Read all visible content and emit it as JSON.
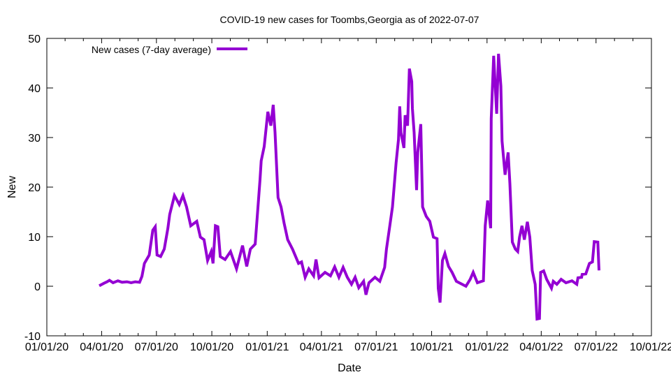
{
  "chart_data": {
    "type": "line",
    "title": "COVID-19 new cases for Toombs,Georgia as of 2022-07-07",
    "xlabel": "Date",
    "ylabel": "New",
    "x_origin": "2020-01-01",
    "x_unit": "days since 2020-01-01",
    "xlim": [
      0,
      1004
    ],
    "ylim": [
      -10,
      50
    ],
    "yticks": [
      -10,
      0,
      10,
      20,
      30,
      40,
      50
    ],
    "xticks": [
      {
        "day": 0,
        "label": "01/01/20"
      },
      {
        "day": 91,
        "label": "04/01/20"
      },
      {
        "day": 182,
        "label": "07/01/20"
      },
      {
        "day": 274,
        "label": "10/01/20"
      },
      {
        "day": 366,
        "label": "01/01/21"
      },
      {
        "day": 456,
        "label": "04/01/21"
      },
      {
        "day": 547,
        "label": "07/01/21"
      },
      {
        "day": 639,
        "label": "10/01/21"
      },
      {
        "day": 731,
        "label": "01/01/22"
      },
      {
        "day": 821,
        "label": "04/01/22"
      },
      {
        "day": 912,
        "label": "07/01/22"
      },
      {
        "day": 1004,
        "label": "10/01/22"
      }
    ],
    "grid": false,
    "legend_position": "top-left",
    "series": [
      {
        "name": "New cases (7-day average)",
        "color": "#9400d3",
        "x": [
          87,
          95,
          100,
          104,
          110,
          118,
          125,
          133,
          140,
          147,
          154,
          158,
          162,
          170,
          176,
          180,
          183,
          189,
          195,
          201,
          204,
          212,
          220,
          226,
          232,
          239,
          249,
          255,
          261,
          267,
          273,
          276,
          280,
          284,
          288,
          296,
          305,
          315,
          325,
          332,
          338,
          346,
          352,
          354,
          356,
          361,
          367,
          372,
          376,
          379,
          384,
          389,
          394,
          400,
          408,
          418,
          423,
          429,
          435,
          443,
          447,
          452,
          462,
          471,
          478,
          485,
          492,
          499,
          506,
          512,
          518,
          526,
          530,
          535,
          545,
          553,
          561,
          564,
          569,
          574,
          580,
          584,
          586,
          588,
          593,
          595,
          599,
          602,
          606,
          607,
          610,
          614,
          616,
          621,
          624,
          630,
          636,
          642,
          648,
          650,
          653,
          657,
          661,
          667,
          673,
          680,
          696,
          703,
          708,
          715,
          725,
          728,
          732,
          737,
          738,
          742,
          747,
          750,
          754,
          756,
          761,
          766,
          769,
          773,
          778,
          782,
          785,
          789,
          793,
          798,
          802,
          806,
          811,
          814,
          818,
          820,
          825,
          830,
          838,
          841,
          847,
          854,
          862,
          872,
          880,
          882,
          888,
          889,
          895,
          901,
          906,
          909,
          915,
          917
        ],
        "y": [
          0.1,
          0.6,
          0.9,
          1.2,
          0.7,
          1.1,
          0.8,
          0.9,
          0.7,
          0.9,
          0.8,
          2.0,
          4.6,
          6.3,
          11.3,
          12.0,
          6.3,
          6.0,
          7.5,
          11.7,
          14.5,
          18.3,
          16.5,
          18.3,
          16.0,
          12.2,
          13.1,
          9.9,
          9.4,
          5.2,
          7.0,
          4.6,
          12.2,
          12.0,
          6.0,
          5.4,
          7.0,
          3.5,
          8.2,
          4.0,
          7.5,
          8.5,
          18.3,
          21.5,
          25.3,
          28.2,
          35.2,
          32.4,
          36.6,
          31.0,
          17.9,
          16.0,
          12.7,
          9.4,
          7.5,
          4.6,
          4.9,
          1.8,
          3.5,
          2.1,
          5.4,
          1.7,
          2.8,
          2.1,
          3.9,
          1.8,
          3.8,
          1.8,
          0.4,
          1.8,
          -0.3,
          1.0,
          -1.7,
          0.7,
          1.8,
          1.0,
          3.8,
          7.5,
          11.7,
          16.0,
          24.9,
          29.6,
          36.3,
          31.0,
          27.9,
          34.5,
          32.4,
          43.9,
          41.3,
          35.9,
          31.0,
          19.4,
          27.0,
          32.7,
          16.0,
          14.1,
          13.1,
          9.9,
          9.6,
          -0.4,
          -3.3,
          5.2,
          6.6,
          4.0,
          2.8,
          1.0,
          0.0,
          1.4,
          2.8,
          0.7,
          1.1,
          12.2,
          17.3,
          11.7,
          33.8,
          46.5,
          34.8,
          46.9,
          40.4,
          29.3,
          22.5,
          27.0,
          20.7,
          8.9,
          7.5,
          7.0,
          9.9,
          12.2,
          9.4,
          13.0,
          9.9,
          3.2,
          0.4,
          -6.6,
          -6.5,
          2.8,
          3.1,
          1.4,
          -0.4,
          1.0,
          0.4,
          1.4,
          0.7,
          1.1,
          0.4,
          1.7,
          1.8,
          2.4,
          2.5,
          4.6,
          4.9,
          9.0,
          8.9,
          3.2
        ]
      }
    ]
  }
}
